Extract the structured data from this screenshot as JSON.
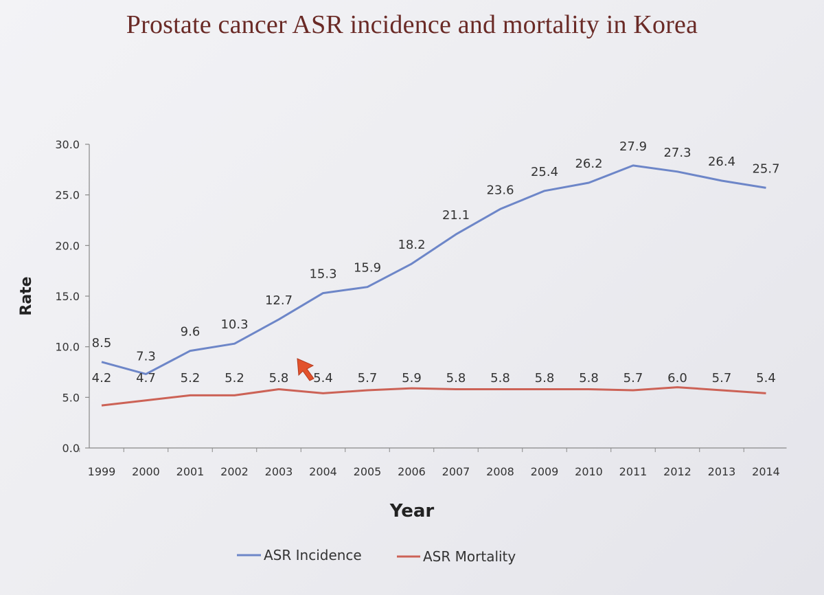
{
  "chart_data": {
    "type": "line",
    "title": "Prostate cancer ASR incidence and mortality in Korea",
    "xlabel": "Year",
    "ylabel": "Rate",
    "ylim": [
      0,
      30
    ],
    "yticks": [
      "0.0",
      "5.0",
      "10.0",
      "15.0",
      "20.0",
      "25.0",
      "30.0"
    ],
    "grid": false,
    "legend_position": "bottom-center",
    "categories": [
      "1999",
      "2000",
      "2001",
      "2002",
      "2003",
      "2004",
      "2005",
      "2006",
      "2007",
      "2008",
      "2009",
      "2010",
      "2011",
      "2012",
      "2013",
      "2014"
    ],
    "series": [
      {
        "name": "ASR Incidence",
        "color": "#6d86c8",
        "values": [
          8.5,
          7.3,
          9.6,
          10.3,
          12.7,
          15.3,
          15.9,
          18.2,
          21.1,
          23.6,
          25.4,
          26.2,
          27.9,
          27.3,
          26.4,
          25.7
        ],
        "labels": [
          "8.5",
          "7.3",
          "9.6",
          "10.3",
          "12.7",
          "15.3",
          "15.9",
          "18.2",
          "21.1",
          "23.6",
          "25.4",
          "26.2",
          "27.9",
          "27.3",
          "26.4",
          "25.7"
        ]
      },
      {
        "name": "ASR Mortality",
        "color": "#cc6256",
        "values": [
          4.2,
          4.7,
          5.2,
          5.2,
          5.8,
          5.4,
          5.7,
          5.9,
          5.8,
          5.8,
          5.8,
          5.8,
          5.7,
          6.0,
          5.7,
          5.4
        ],
        "labels": [
          "4.2",
          "4.7",
          "5.2",
          "5.2",
          "5.8",
          "5.4",
          "5.7",
          "5.9",
          "5.8",
          "5.8",
          "5.8",
          "5.8",
          "5.7",
          "6.0",
          "5.7",
          "5.4"
        ]
      }
    ]
  },
  "cursor": {
    "icon": "pointer-arrow-icon",
    "color": "#e2522c"
  }
}
